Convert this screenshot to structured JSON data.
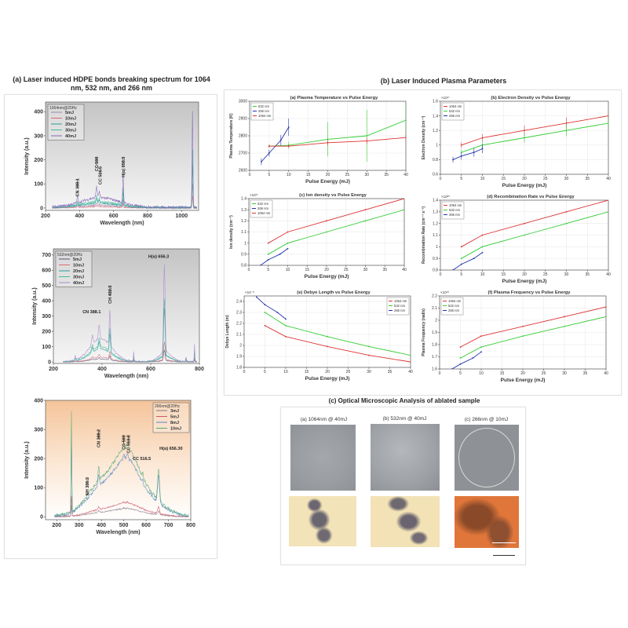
{
  "section_a": {
    "title_line1": "(a) Laser induced HDPE bonds breaking  spectrum for 1064",
    "title_line2": "nm, 532 nm, and 266 nm"
  },
  "section_b": {
    "title": "(b) Laser Induced Plasma Parameters"
  },
  "section_c": {
    "title": "(c) Optical Microscopic Analysis of ablated sample",
    "captions": [
      "(a) 1064nm @ 40mJ",
      "(b) 532nm @ 40mJ",
      "(c) 266nm @ 10mJ"
    ]
  },
  "colors": {
    "c532": "#33cc33",
    "c266": "#2233aa",
    "c1064": "#dd3333"
  },
  "chart_data": [
    {
      "id": "spec1064",
      "type": "line",
      "title": "",
      "xlabel": "Wavelength (nm)",
      "ylabel": "Intensity (a.u.)",
      "xlim": [
        200,
        1100
      ],
      "ylim": [
        -10,
        440
      ],
      "xticks": [
        200,
        400,
        600,
        800,
        1000
      ],
      "yticks": [
        0,
        100,
        200,
        300,
        400
      ],
      "legend_title": "1064nm@20Hz",
      "legend_position": "top-left",
      "background": "gray",
      "hump": [
        [
          520,
          40,
          110
        ]
      ],
      "peaks": [
        [
          388,
          30,
          3
        ],
        [
          500,
          45,
          4
        ],
        [
          516,
          25,
          3
        ],
        [
          656,
          120,
          2.5
        ],
        [
          1064,
          400,
          2.5
        ]
      ],
      "series": [
        {
          "name": "5mJ",
          "color": "#9a8aa8",
          "scale": 0.25
        },
        {
          "name": "10mJ",
          "color": "#dd6677",
          "scale": 0.12
        },
        {
          "name": "20mJ",
          "color": "#2a9a9a",
          "scale": 0.45
        },
        {
          "name": "30mJ",
          "color": "#44bb99",
          "scale": 0.6
        },
        {
          "name": "40mJ",
          "color": "#8866bb",
          "scale": 1.0
        }
      ],
      "annotations": [
        {
          "text": "CN 388.1",
          "x": 388,
          "y": 110,
          "rotate": true
        },
        {
          "text": "CC 500",
          "x": 500,
          "y": 200,
          "rotate": true
        },
        {
          "text": "CC 516.5",
          "x": 520,
          "y": 160,
          "rotate": true
        },
        {
          "text": "H(α) 656.3",
          "x": 656,
          "y": 200,
          "rotate": true
        }
      ]
    },
    {
      "id": "spec532",
      "type": "line",
      "title": "",
      "xlabel": "Wavelength (nm)",
      "ylabel": "Intensity (a.u.)",
      "xlim": [
        200,
        800
      ],
      "ylim": [
        -10,
        740
      ],
      "xticks": [
        200,
        400,
        600,
        800
      ],
      "yticks": [
        0,
        100,
        200,
        300,
        400,
        500,
        600,
        700
      ],
      "legend_title": "532nm@20Hz",
      "legend_position": "top-left",
      "background": "gray",
      "hump": [
        [
          395,
          150,
          45
        ],
        [
          660,
          60,
          25
        ]
      ],
      "peaks": [
        [
          360,
          60,
          3
        ],
        [
          388,
          90,
          3
        ],
        [
          432,
          230,
          2.5
        ],
        [
          656,
          580,
          3
        ],
        [
          290,
          25,
          3
        ],
        [
          530,
          60,
          1.2
        ],
        [
          745,
          30,
          1.5
        ],
        [
          780,
          110,
          1.2
        ]
      ],
      "series": [
        {
          "name": "5mJ",
          "color": "#555577",
          "scale": 0.12
        },
        {
          "name": "10mJ",
          "color": "#dd6677",
          "scale": 0.2
        },
        {
          "name": "20mJ",
          "color": "#2a9a9a",
          "scale": 0.55
        },
        {
          "name": "30mJ",
          "color": "#44bb99",
          "scale": 0.65
        },
        {
          "name": "40mJ",
          "color": "#aa88cc",
          "scale": 1.0
        }
      ],
      "annotations": [
        {
          "text": "CN 388.1",
          "x": 320,
          "y": 320,
          "rotate": false
        },
        {
          "text": "CH 432.3",
          "x": 432,
          "y": 480,
          "rotate": true
        },
        {
          "text": "H(α) 656.3",
          "x": 590,
          "y": 680,
          "rotate": false
        }
      ]
    },
    {
      "id": "spec266",
      "type": "line",
      "title": "",
      "xlabel": "Wavelength (nm)",
      "ylabel": "Intensity (a.u.)",
      "xlim": [
        150,
        800
      ],
      "ylim": [
        -10,
        400
      ],
      "xticks": [
        200,
        300,
        400,
        500,
        600,
        700,
        800
      ],
      "yticks": [
        0,
        100,
        200,
        300,
        400
      ],
      "legend_title": "266nm@20Hz",
      "legend_position": "top-right",
      "background": "peach",
      "hump": [
        [
          410,
          120,
          70
        ],
        [
          515,
          160,
          50
        ],
        [
          600,
          70,
          70
        ]
      ],
      "peaks": [
        [
          266,
          340,
          1.5
        ],
        [
          388,
          50,
          3
        ],
        [
          500,
          20,
          3
        ],
        [
          516,
          20,
          3
        ],
        [
          656,
          110,
          4
        ],
        [
          585,
          20,
          1.5
        ]
      ],
      "series": [
        {
          "name": "3mJ",
          "color": "#887788",
          "scale": 0.12
        },
        {
          "name": "5mJ",
          "color": "#cc5566",
          "scale": 0.2
        },
        {
          "name": "8mJ",
          "color": "#5588cc",
          "scale": 0.85
        },
        {
          "name": "10mJ",
          "color": "#55aa77",
          "scale": 1.0
        }
      ],
      "annotations": [
        {
          "text": "NH 336.3",
          "x": 336,
          "y": 125,
          "rotate": true
        },
        {
          "text": "CN 388.2",
          "x": 388,
          "y": 290,
          "rotate": true
        },
        {
          "text": "CC 500",
          "x": 500,
          "y": 270,
          "rotate": true
        },
        {
          "text": "CC 513.8",
          "x": 520,
          "y": 270,
          "rotate": true
        },
        {
          "text": "CC 516.5",
          "x": 540,
          "y": 195,
          "rotate": false
        },
        {
          "text": "H(α) 656.30",
          "x": 660,
          "y": 230,
          "rotate": false
        }
      ]
    },
    {
      "id": "temp",
      "type": "line",
      "title": "(a) Plasma Temperature vs Pulse Energy",
      "xlabel": "Pulse Energy (mJ)",
      "ylabel": "Plasma Temperature (K)",
      "exponent": "",
      "xlim": [
        0,
        40
      ],
      "ylim": [
        2600,
        3000
      ],
      "xticks": [
        0,
        5,
        10,
        15,
        20,
        25,
        30,
        35,
        40
      ],
      "yticks": [
        2600,
        2700,
        2800,
        2900,
        3000
      ],
      "legend_position": "top-left",
      "series": [
        {
          "name": "532 nm",
          "color": "#33cc33",
          "x": [
            5,
            10,
            20,
            30,
            40
          ],
          "y": [
            2740,
            2745,
            2780,
            2800,
            2890
          ],
          "err": [
            10,
            20,
            100,
            150,
            90
          ]
        },
        {
          "name": "266 nm",
          "color": "#2233aa",
          "x": [
            3,
            5,
            8,
            10
          ],
          "y": [
            2650,
            2700,
            2775,
            2850
          ],
          "err": [
            20,
            20,
            30,
            50
          ]
        },
        {
          "name": "1064 nm",
          "color": "#dd3333",
          "x": [
            5,
            10,
            20,
            30,
            40
          ],
          "y": [
            2740,
            2740,
            2760,
            2770,
            2790
          ],
          "err": [
            10,
            10,
            15,
            20,
            20
          ]
        }
      ]
    },
    {
      "id": "edens",
      "type": "line",
      "title": "(b) Electron Density vs Pulse Energy",
      "xlabel": "Pulse Energy (mJ)",
      "ylabel": "Electron Density (cm⁻³)",
      "exponent": "×10¹⁷",
      "xlim": [
        0,
        40
      ],
      "ylim": [
        0.6,
        1.6
      ],
      "xticks": [
        0,
        5,
        10,
        15,
        20,
        25,
        30,
        35,
        40
      ],
      "yticks": [
        0.6,
        0.8,
        1,
        1.2,
        1.4,
        1.6
      ],
      "legend_position": "top-left",
      "series": [
        {
          "name": "1064 nm",
          "color": "#dd3333",
          "x": [
            5,
            10,
            20,
            30,
            40
          ],
          "y": [
            1.0,
            1.1,
            1.2,
            1.3,
            1.4
          ],
          "err": [
            0.04,
            0.05,
            0.07,
            0.08,
            0.09
          ]
        },
        {
          "name": "532 nm",
          "color": "#33cc33",
          "x": [
            5,
            10,
            20,
            30,
            40
          ],
          "y": [
            0.9,
            1.0,
            1.1,
            1.2,
            1.3
          ],
          "err": [
            0.04,
            0.05,
            0.07,
            0.08,
            0.09
          ]
        },
        {
          "name": "266 nm",
          "color": "#2233aa",
          "x": [
            3,
            5,
            8,
            10
          ],
          "y": [
            0.8,
            0.85,
            0.9,
            0.95
          ],
          "err": [
            0.04,
            0.05,
            0.06,
            0.06
          ]
        }
      ]
    },
    {
      "id": "idens",
      "type": "line",
      "title": "(c) Ion density vs Pulse Energy",
      "xlabel": "Pulse Energy (mJ)",
      "ylabel": "Ion density (cm⁻³)",
      "exponent": "×10¹⁷",
      "xlim": [
        0,
        40
      ],
      "ylim": [
        0.8,
        1.4
      ],
      "xticks": [
        0,
        5,
        10,
        15,
        20,
        25,
        30,
        35,
        40
      ],
      "yticks": [
        0.8,
        0.9,
        1,
        1.1,
        1.2,
        1.3,
        1.4
      ],
      "legend_position": "top-left",
      "series": [
        {
          "name": "532 nm",
          "color": "#33cc33",
          "x": [
            5,
            10,
            20,
            30,
            40
          ],
          "y": [
            0.9,
            1.0,
            1.1,
            1.2,
            1.3
          ]
        },
        {
          "name": "266 nm",
          "color": "#2233aa",
          "x": [
            3,
            5,
            8,
            10
          ],
          "y": [
            0.8,
            0.85,
            0.9,
            0.95
          ]
        },
        {
          "name": "1064 nm",
          "color": "#dd3333",
          "x": [
            5,
            10,
            20,
            30,
            40
          ],
          "y": [
            1.0,
            1.1,
            1.2,
            1.3,
            1.4
          ]
        }
      ]
    },
    {
      "id": "recomb",
      "type": "line",
      "title": "(d) Recombination Rate vs Pulse Energy",
      "xlabel": "Pulse Energy (mJ)",
      "ylabel": "Recombination Rate (cm⁻³ s⁻¹)",
      "exponent": "×10²⁵",
      "xlim": [
        0,
        40
      ],
      "ylim": [
        0.8,
        1.4
      ],
      "xticks": [
        0,
        5,
        10,
        15,
        20,
        25,
        30,
        35,
        40
      ],
      "yticks": [
        0.8,
        0.9,
        1,
        1.1,
        1.2,
        1.3,
        1.4
      ],
      "legend_position": "top-left",
      "series": [
        {
          "name": "1064 nm",
          "color": "#dd3333",
          "x": [
            5,
            10,
            20,
            30,
            40
          ],
          "y": [
            1.0,
            1.1,
            1.2,
            1.3,
            1.4
          ]
        },
        {
          "name": "532 nm",
          "color": "#33cc33",
          "x": [
            5,
            10,
            20,
            30,
            40
          ],
          "y": [
            0.9,
            1.0,
            1.1,
            1.2,
            1.3
          ]
        },
        {
          "name": "266 nm",
          "color": "#2233aa",
          "x": [
            3,
            5,
            8,
            10
          ],
          "y": [
            0.8,
            0.85,
            0.9,
            0.95
          ]
        }
      ]
    },
    {
      "id": "debye",
      "type": "line",
      "title": "(e) Debye Length vs Pulse Energy",
      "xlabel": "Pulse Energy (mJ)",
      "ylabel": "Debye Length (m)",
      "exponent": "×10⁻⁸",
      "xlim": [
        0,
        40
      ],
      "ylim": [
        1.8,
        2.45
      ],
      "xticks": [
        0,
        5,
        10,
        15,
        20,
        25,
        30,
        35,
        40
      ],
      "yticks": [
        1.8,
        1.9,
        2,
        2.1,
        2.2,
        2.3,
        2.4
      ],
      "legend_position": "top-right",
      "series": [
        {
          "name": "1064 nm",
          "color": "#dd3333",
          "x": [
            5,
            10,
            20,
            30,
            40
          ],
          "y": [
            2.18,
            2.08,
            1.99,
            1.91,
            1.85
          ]
        },
        {
          "name": "532 nm",
          "color": "#33cc33",
          "x": [
            5,
            10,
            20,
            30,
            40
          ],
          "y": [
            2.3,
            2.18,
            2.08,
            1.99,
            1.91
          ]
        },
        {
          "name": "266 nm",
          "color": "#2233aa",
          "x": [
            3,
            5,
            8,
            10
          ],
          "y": [
            2.44,
            2.37,
            2.3,
            2.24
          ]
        }
      ]
    },
    {
      "id": "pfreq",
      "type": "line",
      "title": "(f) Plasma Frequency vs Pulse Energy",
      "xlabel": "Pulse Energy (mJ)",
      "ylabel": "Plasma Frequency (rad/s)",
      "exponent": "×10¹³",
      "xlim": [
        0,
        40
      ],
      "ylim": [
        1.6,
        2.2
      ],
      "xticks": [
        0,
        5,
        10,
        15,
        20,
        25,
        30,
        35,
        40
      ],
      "yticks": [
        1.6,
        1.7,
        1.8,
        1.9,
        2,
        2.1,
        2.2
      ],
      "legend_position": "top-left",
      "series": [
        {
          "name": "1064 nm",
          "color": "#dd3333",
          "x": [
            5,
            10,
            20,
            30,
            40
          ],
          "y": [
            1.78,
            1.87,
            1.95,
            2.03,
            2.11
          ]
        },
        {
          "name": "532 nm",
          "color": "#33cc33",
          "x": [
            5,
            10,
            20,
            30,
            40
          ],
          "y": [
            1.69,
            1.78,
            1.87,
            1.95,
            2.03
          ]
        },
        {
          "name": "266 nm",
          "color": "#2233aa",
          "x": [
            3,
            5,
            8,
            10
          ],
          "y": [
            1.6,
            1.64,
            1.69,
            1.74
          ]
        }
      ]
    }
  ]
}
